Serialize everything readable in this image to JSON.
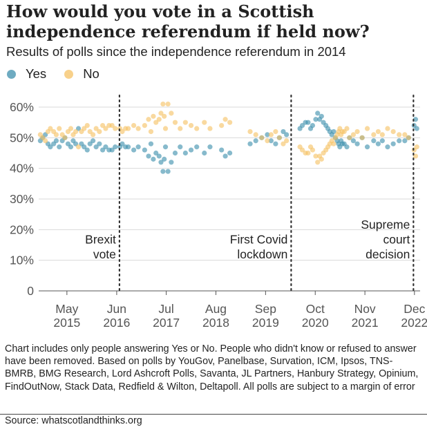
{
  "title": "How would you vote in a Scottish independence referendum if held now?",
  "subtitle": "Results of polls since the independence referendum in 2014",
  "legend": [
    {
      "label": "Yes",
      "color": "#3d8fac"
    },
    {
      "label": "No",
      "color": "#f6c164"
    }
  ],
  "note": "Chart includes only people answering Yes or No. People who didn't know or refused to answer have been removed. Based on polls by YouGov, Panelbase, Survation, ICM, Ipsos, TNS-BMRB, BMG Research, Lord Ashcroft Polls, Savanta, JL Partners, Hanbury Strategy, Opinium, FindOutNow, Stack Data, Redfield & Wilton, Deltapoll. All polls are subject to a margin of error",
  "source": "Source: whatscotlandthinks.org",
  "chart_data": {
    "type": "scatter",
    "title": "How would you vote in a Scottish independence referendum if held now?",
    "subtitle": "Results of polls since the independence referendum in 2014",
    "xlabel": "",
    "ylabel": "",
    "ylim": [
      0,
      60
    ],
    "yticks": [
      0,
      10,
      20,
      30,
      40,
      50,
      60
    ],
    "ytick_labels": [
      "0",
      "10%",
      "20%",
      "30%",
      "40%",
      "50%",
      "60%"
    ],
    "xlim": [
      "2014-09-18",
      "2023-01-15"
    ],
    "xticks": [
      {
        "date": "2015-05-01",
        "line1": "May",
        "line2": "2015"
      },
      {
        "date": "2016-06-01",
        "line1": "Jun",
        "line2": "2016"
      },
      {
        "date": "2017-07-01",
        "line1": "Jul",
        "line2": "2017"
      },
      {
        "date": "2018-08-01",
        "line1": "Aug",
        "line2": "2018"
      },
      {
        "date": "2019-09-01",
        "line1": "Sep",
        "line2": "2019"
      },
      {
        "date": "2020-10-01",
        "line1": "Oct",
        "line2": "2020"
      },
      {
        "date": "2021-11-01",
        "line1": "Nov",
        "line2": "2021"
      },
      {
        "date": "2022-12-01",
        "line1": "Dec",
        "line2": "2022"
      }
    ],
    "grid": true,
    "legend_position": "top-left",
    "annotations": [
      {
        "date": "2016-06-23",
        "lines": [
          "Brexit",
          "vote"
        ]
      },
      {
        "date": "2020-03-23",
        "lines": [
          "First Covid",
          "lockdown"
        ]
      },
      {
        "date": "2022-11-23",
        "lines": [
          "Supreme",
          "court",
          "decision"
        ]
      }
    ],
    "series": [
      {
        "name": "Yes",
        "color": "#3d8fac",
        "points": [
          [
            "2014-10-01",
            49
          ],
          [
            "2014-10-20",
            50
          ],
          [
            "2014-11-10",
            51
          ],
          [
            "2014-12-01",
            48
          ],
          [
            "2014-12-20",
            47
          ],
          [
            "2015-01-15",
            48
          ],
          [
            "2015-02-05",
            49
          ],
          [
            "2015-03-01",
            47
          ],
          [
            "2015-03-25",
            49
          ],
          [
            "2015-04-15",
            50
          ],
          [
            "2015-05-10",
            48
          ],
          [
            "2015-06-01",
            47
          ],
          [
            "2015-06-20",
            49
          ],
          [
            "2015-07-10",
            48
          ],
          [
            "2015-08-01",
            53
          ],
          [
            "2015-08-25",
            48
          ],
          [
            "2015-09-15",
            47
          ],
          [
            "2015-10-10",
            46
          ],
          [
            "2015-11-01",
            48
          ],
          [
            "2015-11-25",
            49
          ],
          [
            "2015-12-20",
            47
          ],
          [
            "2016-01-15",
            48
          ],
          [
            "2016-02-10",
            46
          ],
          [
            "2016-03-05",
            47
          ],
          [
            "2016-04-01",
            46
          ],
          [
            "2016-04-25",
            46
          ],
          [
            "2016-05-20",
            47
          ],
          [
            "2016-06-27",
            47
          ],
          [
            "2016-07-15",
            48
          ],
          [
            "2016-08-10",
            47
          ],
          [
            "2016-09-01",
            47
          ],
          [
            "2016-10-15",
            46
          ],
          [
            "2016-11-20",
            47
          ],
          [
            "2017-01-10",
            46
          ],
          [
            "2017-02-10",
            44
          ],
          [
            "2017-03-01",
            48
          ],
          [
            "2017-03-20",
            43
          ],
          [
            "2017-04-10",
            45
          ],
          [
            "2017-05-05",
            44
          ],
          [
            "2017-05-20",
            42
          ],
          [
            "2017-06-05",
            39
          ],
          [
            "2017-06-15",
            43
          ],
          [
            "2017-06-25",
            47
          ],
          [
            "2017-07-15",
            39
          ],
          [
            "2017-08-10",
            42
          ],
          [
            "2017-09-10",
            45
          ],
          [
            "2017-10-20",
            47
          ],
          [
            "2017-12-01",
            45
          ],
          [
            "2018-01-15",
            46
          ],
          [
            "2018-03-01",
            47
          ],
          [
            "2018-05-01",
            45
          ],
          [
            "2018-06-15",
            47
          ],
          [
            "2018-09-15",
            46
          ],
          [
            "2018-10-15",
            44
          ],
          [
            "2018-11-20",
            45
          ],
          [
            "2019-05-01",
            48
          ],
          [
            "2019-06-15",
            49
          ],
          [
            "2019-08-01",
            50
          ],
          [
            "2019-09-15",
            51
          ],
          [
            "2019-10-15",
            49
          ],
          [
            "2019-11-20",
            48
          ],
          [
            "2019-12-20",
            50
          ],
          [
            "2020-01-20",
            52
          ],
          [
            "2020-02-15",
            51
          ],
          [
            "2020-06-01",
            53
          ],
          [
            "2020-06-20",
            54
          ],
          [
            "2020-07-15",
            55
          ],
          [
            "2020-08-05",
            55
          ],
          [
            "2020-08-25",
            53
          ],
          [
            "2020-09-10",
            54
          ],
          [
            "2020-10-05",
            56
          ],
          [
            "2020-10-20",
            58
          ],
          [
            "2020-11-05",
            56
          ],
          [
            "2020-11-20",
            57
          ],
          [
            "2020-12-05",
            55
          ],
          [
            "2020-12-25",
            54
          ],
          [
            "2021-01-10",
            53
          ],
          [
            "2021-01-25",
            52
          ],
          [
            "2021-02-10",
            51
          ],
          [
            "2021-02-25",
            52
          ],
          [
            "2021-03-10",
            50
          ],
          [
            "2021-03-25",
            49
          ],
          [
            "2021-04-05",
            48
          ],
          [
            "2021-04-15",
            47
          ],
          [
            "2021-04-25",
            49
          ],
          [
            "2021-05-05",
            48
          ],
          [
            "2021-05-20",
            48
          ],
          [
            "2021-06-10",
            47
          ],
          [
            "2021-07-01",
            50
          ],
          [
            "2021-08-01",
            49
          ],
          [
            "2021-09-01",
            48
          ],
          [
            "2021-10-10",
            50
          ],
          [
            "2021-11-20",
            47
          ],
          [
            "2022-01-10",
            49
          ],
          [
            "2022-02-15",
            48
          ],
          [
            "2022-03-20",
            49
          ],
          [
            "2022-05-01",
            47
          ],
          [
            "2022-06-15",
            48
          ],
          [
            "2022-08-01",
            49
          ],
          [
            "2022-09-15",
            49
          ],
          [
            "2022-10-15",
            50
          ],
          [
            "2022-11-28",
            54
          ],
          [
            "2022-12-10",
            56
          ],
          [
            "2022-12-20",
            53
          ]
        ]
      },
      {
        "name": "No",
        "color": "#f6c164",
        "points": [
          [
            "2014-10-01",
            51
          ],
          [
            "2014-10-20",
            50
          ],
          [
            "2014-11-10",
            49
          ],
          [
            "2014-12-01",
            52
          ],
          [
            "2014-12-20",
            53
          ],
          [
            "2015-01-15",
            52
          ],
          [
            "2015-02-05",
            51
          ],
          [
            "2015-03-01",
            53
          ],
          [
            "2015-03-25",
            51
          ],
          [
            "2015-04-15",
            50
          ],
          [
            "2015-05-10",
            52
          ],
          [
            "2015-06-01",
            53
          ],
          [
            "2015-06-20",
            51
          ],
          [
            "2015-07-10",
            52
          ],
          [
            "2015-08-01",
            47
          ],
          [
            "2015-08-25",
            52
          ],
          [
            "2015-09-15",
            53
          ],
          [
            "2015-10-10",
            54
          ],
          [
            "2015-11-01",
            52
          ],
          [
            "2015-11-25",
            51
          ],
          [
            "2015-12-20",
            53
          ],
          [
            "2016-01-15",
            52
          ],
          [
            "2016-02-10",
            54
          ],
          [
            "2016-03-05",
            53
          ],
          [
            "2016-04-01",
            54
          ],
          [
            "2016-04-25",
            54
          ],
          [
            "2016-05-20",
            53
          ],
          [
            "2016-06-27",
            53
          ],
          [
            "2016-07-15",
            52
          ],
          [
            "2016-08-10",
            53
          ],
          [
            "2016-09-01",
            53
          ],
          [
            "2016-10-15",
            54
          ],
          [
            "2016-11-20",
            53
          ],
          [
            "2017-01-10",
            54
          ],
          [
            "2017-02-10",
            56
          ],
          [
            "2017-03-01",
            52
          ],
          [
            "2017-03-20",
            57
          ],
          [
            "2017-04-10",
            55
          ],
          [
            "2017-05-05",
            56
          ],
          [
            "2017-05-20",
            58
          ],
          [
            "2017-06-05",
            61
          ],
          [
            "2017-06-15",
            57
          ],
          [
            "2017-06-25",
            53
          ],
          [
            "2017-07-15",
            61
          ],
          [
            "2017-08-10",
            58
          ],
          [
            "2017-09-10",
            55
          ],
          [
            "2017-10-20",
            53
          ],
          [
            "2017-12-01",
            55
          ],
          [
            "2018-01-15",
            54
          ],
          [
            "2018-03-01",
            53
          ],
          [
            "2018-05-01",
            55
          ],
          [
            "2018-06-15",
            53
          ],
          [
            "2018-09-15",
            54
          ],
          [
            "2018-10-15",
            56
          ],
          [
            "2018-11-20",
            55
          ],
          [
            "2019-05-01",
            52
          ],
          [
            "2019-06-15",
            51
          ],
          [
            "2019-08-01",
            50
          ],
          [
            "2019-09-15",
            49
          ],
          [
            "2019-10-15",
            51
          ],
          [
            "2019-11-20",
            52
          ],
          [
            "2019-12-20",
            50
          ],
          [
            "2020-01-20",
            48
          ],
          [
            "2020-02-15",
            49
          ],
          [
            "2020-06-01",
            47
          ],
          [
            "2020-06-20",
            46
          ],
          [
            "2020-07-15",
            45
          ],
          [
            "2020-08-05",
            45
          ],
          [
            "2020-08-25",
            47
          ],
          [
            "2020-09-10",
            46
          ],
          [
            "2020-10-05",
            44
          ],
          [
            "2020-10-20",
            42
          ],
          [
            "2020-11-05",
            44
          ],
          [
            "2020-11-20",
            43
          ],
          [
            "2020-12-05",
            45
          ],
          [
            "2020-12-25",
            46
          ],
          [
            "2021-01-10",
            47
          ],
          [
            "2021-01-25",
            48
          ],
          [
            "2021-02-10",
            49
          ],
          [
            "2021-02-25",
            48
          ],
          [
            "2021-03-10",
            50
          ],
          [
            "2021-03-25",
            51
          ],
          [
            "2021-04-05",
            52
          ],
          [
            "2021-04-15",
            53
          ],
          [
            "2021-04-25",
            51
          ],
          [
            "2021-05-05",
            52
          ],
          [
            "2021-05-20",
            52
          ],
          [
            "2021-06-10",
            53
          ],
          [
            "2021-07-01",
            50
          ],
          [
            "2021-08-01",
            51
          ],
          [
            "2021-09-01",
            52
          ],
          [
            "2021-10-10",
            50
          ],
          [
            "2021-11-20",
            53
          ],
          [
            "2022-01-10",
            51
          ],
          [
            "2022-02-15",
            52
          ],
          [
            "2022-03-20",
            51
          ],
          [
            "2022-05-01",
            53
          ],
          [
            "2022-06-15",
            52
          ],
          [
            "2022-08-01",
            51
          ],
          [
            "2022-09-15",
            51
          ],
          [
            "2022-10-15",
            50
          ],
          [
            "2022-11-28",
            46
          ],
          [
            "2022-12-10",
            44
          ],
          [
            "2022-12-20",
            47
          ]
        ]
      }
    ]
  }
}
